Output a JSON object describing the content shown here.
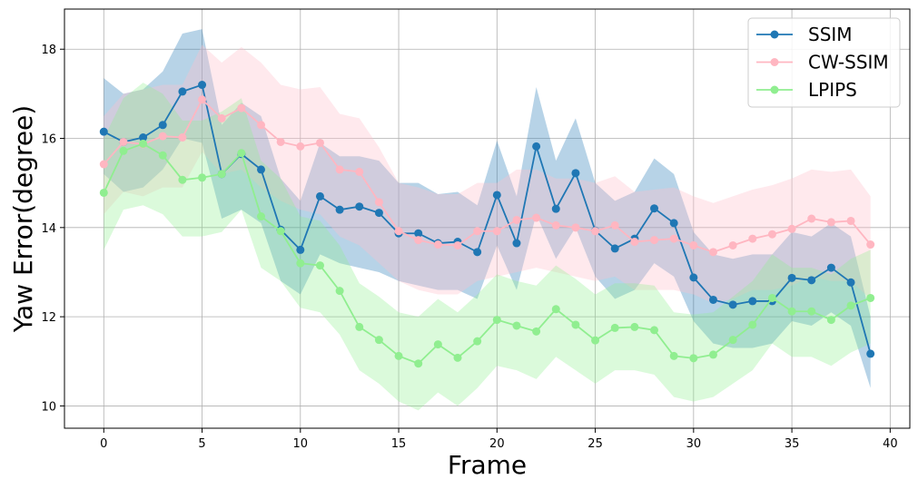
{
  "chart_data": {
    "type": "line",
    "xlabel": "Frame",
    "ylabel": "Yaw Error(degree)",
    "xlim": [
      -2,
      41
    ],
    "ylim": [
      9.5,
      18.9
    ],
    "xticks": [
      0,
      5,
      10,
      15,
      20,
      25,
      30,
      35,
      40
    ],
    "yticks": [
      10,
      12,
      14,
      16,
      18
    ],
    "grid": true,
    "legend_position": "top-right",
    "x": [
      0,
      1,
      2,
      3,
      4,
      5,
      6,
      7,
      8,
      9,
      10,
      11,
      12,
      13,
      14,
      15,
      16,
      17,
      18,
      19,
      20,
      21,
      22,
      23,
      24,
      25,
      26,
      27,
      28,
      29,
      30,
      31,
      32,
      33,
      34,
      35,
      36,
      37,
      38,
      39
    ],
    "series": [
      {
        "name": "SSIM",
        "color": "#1f77b4",
        "fill_color": "#1f77b4",
        "values": [
          16.15,
          15.92,
          16.02,
          16.3,
          17.05,
          17.2,
          15.2,
          15.65,
          15.3,
          13.95,
          13.5,
          14.7,
          14.4,
          14.47,
          14.33,
          13.87,
          13.87,
          13.65,
          13.68,
          13.45,
          14.73,
          13.65,
          15.82,
          14.42,
          15.22,
          13.93,
          13.53,
          13.75,
          14.43,
          14.1,
          12.88,
          12.38,
          12.27,
          12.35,
          12.35,
          12.87,
          12.82,
          13.1,
          12.77,
          11.17
        ],
        "lower": [
          15.2,
          14.8,
          14.9,
          15.3,
          16.0,
          15.9,
          14.2,
          14.4,
          14.1,
          12.8,
          12.5,
          13.4,
          13.2,
          13.1,
          13.0,
          12.8,
          12.7,
          12.6,
          12.6,
          12.4,
          13.6,
          12.6,
          14.3,
          13.3,
          14.0,
          12.9,
          12.4,
          12.6,
          13.2,
          12.9,
          11.9,
          11.4,
          11.3,
          11.3,
          11.4,
          11.9,
          11.8,
          12.1,
          11.8,
          10.4
        ],
        "upper": [
          17.35,
          17.0,
          17.1,
          17.5,
          18.35,
          18.45,
          16.3,
          16.8,
          16.5,
          15.1,
          14.6,
          15.9,
          15.6,
          15.6,
          15.5,
          15.0,
          15.0,
          14.75,
          14.8,
          14.5,
          15.95,
          14.7,
          17.15,
          15.5,
          16.45,
          15.0,
          14.6,
          14.8,
          15.55,
          15.2,
          13.9,
          13.4,
          13.3,
          13.4,
          13.4,
          13.9,
          13.8,
          14.1,
          13.8,
          12.0
        ]
      },
      {
        "name": "CW-SSIM",
        "color": "#ffb6c1",
        "fill_color": "#ffc0cb",
        "values": [
          15.42,
          15.92,
          15.87,
          16.05,
          16.02,
          16.87,
          16.45,
          16.68,
          16.3,
          15.92,
          15.82,
          15.9,
          15.3,
          15.25,
          14.57,
          13.92,
          13.72,
          13.62,
          13.6,
          13.92,
          13.92,
          14.17,
          14.22,
          14.05,
          14.0,
          13.92,
          14.05,
          13.68,
          13.72,
          13.75,
          13.6,
          13.45,
          13.6,
          13.75,
          13.85,
          13.97,
          14.2,
          14.12,
          14.15,
          13.62
        ],
        "lower": [
          14.3,
          14.8,
          14.7,
          14.9,
          14.9,
          15.7,
          15.2,
          15.3,
          14.9,
          14.6,
          14.4,
          14.3,
          13.8,
          13.6,
          13.2,
          12.8,
          12.6,
          12.5,
          12.5,
          12.8,
          12.9,
          13.0,
          13.1,
          13.0,
          12.9,
          12.8,
          12.9,
          12.6,
          12.6,
          12.6,
          12.5,
          12.3,
          12.4,
          12.6,
          12.6,
          12.7,
          12.9,
          12.8,
          12.8,
          12.4
        ],
        "upper": [
          16.5,
          17.0,
          17.1,
          17.2,
          17.2,
          18.1,
          17.7,
          18.05,
          17.7,
          17.2,
          17.1,
          17.15,
          16.55,
          16.45,
          15.8,
          15.0,
          14.9,
          14.75,
          14.75,
          15.0,
          15.0,
          15.3,
          15.3,
          15.1,
          15.1,
          15.0,
          15.15,
          14.8,
          14.85,
          14.9,
          14.7,
          14.55,
          14.7,
          14.85,
          14.95,
          15.1,
          15.3,
          15.25,
          15.3,
          14.7
        ]
      },
      {
        "name": "LPIPS",
        "color": "#90ee90",
        "fill_color": "#90ee90",
        "values": [
          14.78,
          15.72,
          15.88,
          15.62,
          15.07,
          15.12,
          15.2,
          15.67,
          14.25,
          13.92,
          13.2,
          13.15,
          12.58,
          11.77,
          11.48,
          11.12,
          10.95,
          11.38,
          11.08,
          11.45,
          11.93,
          11.8,
          11.67,
          12.17,
          11.82,
          11.47,
          11.75,
          11.77,
          11.7,
          11.12,
          11.07,
          11.15,
          11.48,
          11.82,
          12.42,
          12.12,
          12.12,
          11.93,
          12.25,
          12.42
        ],
        "lower": [
          13.5,
          14.4,
          14.5,
          14.3,
          13.8,
          13.8,
          13.9,
          14.4,
          13.1,
          12.8,
          12.2,
          12.1,
          11.6,
          10.8,
          10.5,
          10.1,
          9.9,
          10.3,
          10.0,
          10.4,
          10.9,
          10.8,
          10.6,
          11.1,
          10.8,
          10.5,
          10.8,
          10.8,
          10.7,
          10.2,
          10.1,
          10.2,
          10.5,
          10.8,
          11.4,
          11.1,
          11.1,
          10.9,
          11.2,
          11.4
        ],
        "upper": [
          16.0,
          16.9,
          17.25,
          17.0,
          16.4,
          16.4,
          16.6,
          16.9,
          15.5,
          15.1,
          14.25,
          14.15,
          13.6,
          12.75,
          12.45,
          12.1,
          12.0,
          12.4,
          12.1,
          12.5,
          12.95,
          12.8,
          12.7,
          13.15,
          12.85,
          12.5,
          12.75,
          12.75,
          12.7,
          12.1,
          12.05,
          12.1,
          12.45,
          12.8,
          13.4,
          13.1,
          13.1,
          12.95,
          13.3,
          13.5
        ]
      }
    ]
  }
}
